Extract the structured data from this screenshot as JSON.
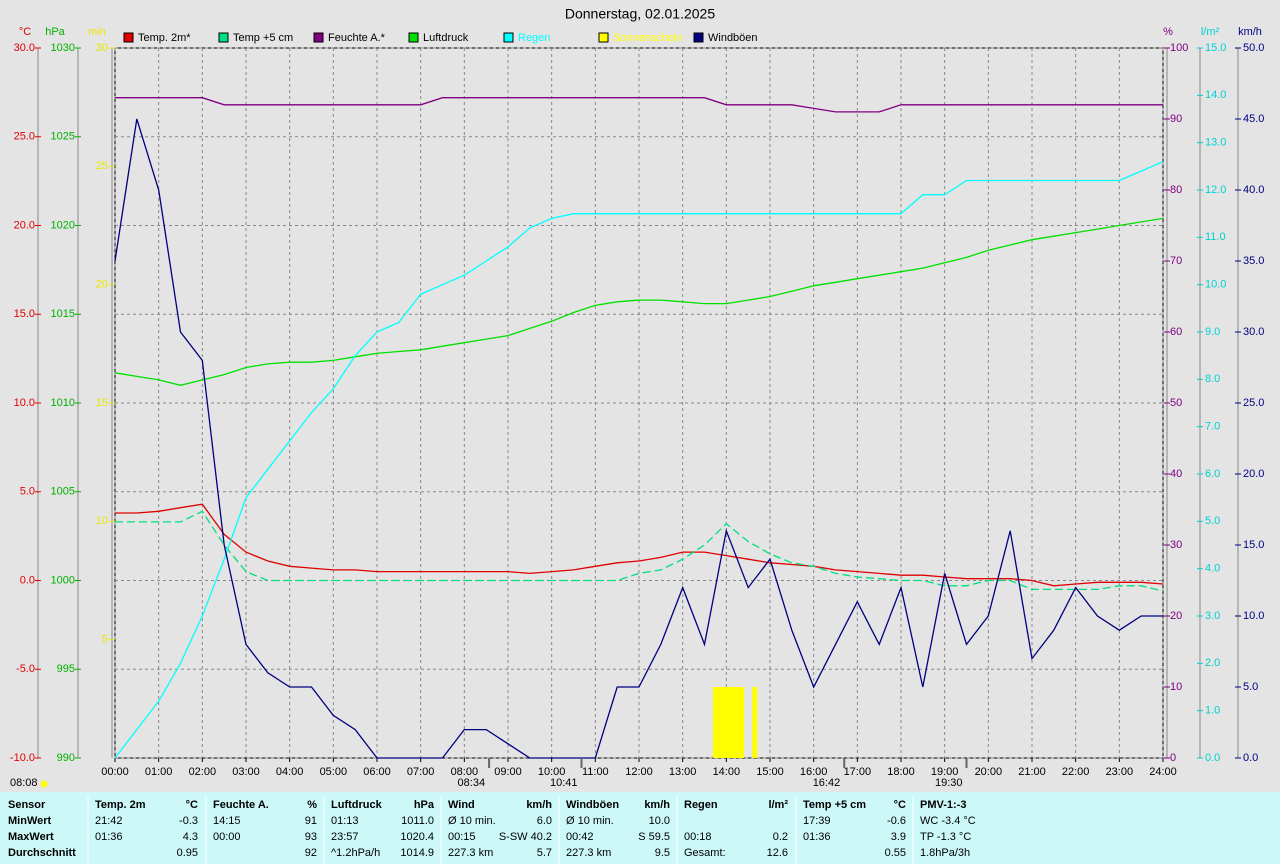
{
  "chart_data": {
    "type": "line",
    "title": "Donnerstag, 02.01.2025",
    "xlim": [
      0,
      24
    ],
    "xticks": [
      {
        "value": 0,
        "label": "00:00"
      },
      {
        "value": 1,
        "label": "01:00"
      },
      {
        "value": 2,
        "label": "02:00"
      },
      {
        "value": 3,
        "label": "03:00"
      },
      {
        "value": 4,
        "label": "04:00"
      },
      {
        "value": 5,
        "label": "05:00"
      },
      {
        "value": 6,
        "label": "06:00"
      },
      {
        "value": 7,
        "label": "07:00"
      },
      {
        "value": 8,
        "label": "08:00"
      },
      {
        "value": 9,
        "label": "09:00"
      },
      {
        "value": 10,
        "label": "10:00"
      },
      {
        "value": 11,
        "label": "11:00"
      },
      {
        "value": 12,
        "label": "12:00"
      },
      {
        "value": 13,
        "label": "13:00"
      },
      {
        "value": 14,
        "label": "14:00"
      },
      {
        "value": 15,
        "label": "15:00"
      },
      {
        "value": 16,
        "label": "16:00"
      },
      {
        "value": 17,
        "label": "17:00"
      },
      {
        "value": 18,
        "label": "18:00"
      },
      {
        "value": 19,
        "label": "19:00"
      },
      {
        "value": 20,
        "label": "20:00"
      },
      {
        "value": 21,
        "label": "21:00"
      },
      {
        "value": 22,
        "label": "22:00"
      },
      {
        "value": 23,
        "label": "23:00"
      },
      {
        "value": 24,
        "label": "24:00"
      }
    ],
    "grid": true,
    "axes": [
      {
        "unit": "°C",
        "color": "#e00000",
        "lim": [
          -10,
          30
        ],
        "ticks": [
          {
            "value": -10,
            "label": "-10.0"
          },
          {
            "value": -5,
            "label": "-5.0"
          },
          {
            "value": 0,
            "label": "0.0"
          },
          {
            "value": 5,
            "label": "5.0"
          },
          {
            "value": 10,
            "label": "10.0"
          },
          {
            "value": 15,
            "label": "15.0"
          },
          {
            "value": 20,
            "label": "20.0"
          },
          {
            "value": 25,
            "label": "25.0"
          },
          {
            "value": 30,
            "label": "30.0"
          }
        ]
      },
      {
        "unit": "hPa",
        "color": "#00b000",
        "lim": [
          990,
          1030
        ],
        "ticks": [
          990,
          995,
          1000,
          1005,
          1010,
          1015,
          1020,
          1025,
          1030
        ]
      },
      {
        "unit": "min",
        "color": "#e8e800",
        "lim": [
          0,
          30
        ],
        "ticks": [
          5,
          10,
          15,
          20,
          25,
          30
        ]
      },
      {
        "unit": "%",
        "color": "#800080",
        "lim": [
          0,
          100
        ],
        "ticks": [
          0,
          10,
          20,
          30,
          40,
          50,
          60,
          70,
          80,
          90,
          100
        ]
      },
      {
        "unit": "l/m²",
        "color": "#00d0d0",
        "lim": [
          0,
          15
        ],
        "ticks": [
          {
            "value": 0,
            "label": "0.0"
          },
          {
            "value": 1,
            "label": "1.0"
          },
          {
            "value": 2,
            "label": "2.0"
          },
          {
            "value": 3,
            "label": "3.0"
          },
          {
            "value": 4,
            "label": "4.0"
          },
          {
            "value": 5,
            "label": "5.0"
          },
          {
            "value": 6,
            "label": "6.0"
          },
          {
            "value": 7,
            "label": "7.0"
          },
          {
            "value": 8,
            "label": "8.0"
          },
          {
            "value": 9,
            "label": "9.0"
          },
          {
            "value": 10,
            "label": "10.0"
          },
          {
            "value": 11,
            "label": "11.0"
          },
          {
            "value": 12,
            "label": "12.0"
          },
          {
            "value": 13,
            "label": "13.0"
          },
          {
            "value": 14,
            "label": "14.0"
          },
          {
            "value": 15,
            "label": "15.0"
          }
        ]
      },
      {
        "unit": "km/h",
        "color": "#000080",
        "lim": [
          0,
          50
        ],
        "ticks": [
          {
            "value": 0,
            "label": "0.0"
          },
          {
            "value": 5,
            "label": "5.0"
          },
          {
            "value": 10,
            "label": "10.0"
          },
          {
            "value": 15,
            "label": "15.0"
          },
          {
            "value": 20,
            "label": "20.0"
          },
          {
            "value": 25,
            "label": "25.0"
          },
          {
            "value": 30,
            "label": "30.0"
          },
          {
            "value": 35,
            "label": "35.0"
          },
          {
            "value": 40,
            "label": "40.0"
          },
          {
            "value": 45,
            "label": "45.0"
          },
          {
            "value": 50,
            "label": "50.0"
          }
        ]
      }
    ],
    "x": [
      0,
      0.5,
      1,
      1.5,
      2,
      2.5,
      3,
      3.5,
      4,
      4.5,
      5,
      5.5,
      6,
      6.5,
      7,
      7.5,
      8,
      8.5,
      9,
      9.5,
      10,
      10.5,
      11,
      11.5,
      12,
      12.5,
      13,
      13.5,
      14,
      14.5,
      15,
      15.5,
      16,
      16.5,
      17,
      17.5,
      18,
      18.5,
      19,
      19.5,
      20,
      20.5,
      21,
      21.5,
      22,
      22.5,
      23,
      23.5,
      24
    ],
    "series": [
      {
        "name": "Temp. 2m*",
        "color": "#e00000",
        "axis": 0,
        "values": [
          3.8,
          3.8,
          3.9,
          4.1,
          4.3,
          2.6,
          1.6,
          1.1,
          0.8,
          0.7,
          0.6,
          0.6,
          0.5,
          0.5,
          0.5,
          0.5,
          0.5,
          0.5,
          0.5,
          0.4,
          0.5,
          0.6,
          0.8,
          1.0,
          1.1,
          1.3,
          1.6,
          1.6,
          1.4,
          1.2,
          1.0,
          0.9,
          0.8,
          0.6,
          0.5,
          0.4,
          0.3,
          0.3,
          0.2,
          0.1,
          0.1,
          0.1,
          0.0,
          -0.3,
          -0.2,
          -0.1,
          -0.1,
          -0.1,
          -0.2
        ]
      },
      {
        "name": "Temp +5 cm",
        "color": "#00e080",
        "axis": 0,
        "dash": true,
        "values": [
          3.3,
          3.3,
          3.3,
          3.3,
          3.9,
          2.0,
          0.5,
          0.0,
          0.0,
          0.0,
          0.0,
          0.0,
          0.0,
          0.0,
          0.0,
          0.0,
          0.0,
          0.0,
          0.0,
          0.0,
          0.0,
          0.0,
          0.0,
          0.0,
          0.4,
          0.6,
          1.2,
          2.0,
          3.2,
          2.2,
          1.5,
          1.0,
          0.8,
          0.4,
          0.2,
          0.1,
          0.0,
          0.0,
          -0.3,
          -0.3,
          0.0,
          0.0,
          -0.5,
          -0.5,
          -0.5,
          -0.5,
          -0.3,
          -0.3,
          -0.6
        ]
      },
      {
        "name": "Feuchte A.*",
        "color": "#800080",
        "axis": 3,
        "values": [
          93,
          93,
          93,
          93,
          93,
          92,
          92,
          92,
          92,
          92,
          92,
          92,
          92,
          92,
          92,
          93,
          93,
          93,
          93,
          93,
          93,
          93,
          93,
          93,
          93,
          93,
          93,
          93,
          92,
          92,
          92,
          92,
          91.5,
          91,
          91,
          91,
          92,
          92,
          92,
          92,
          92,
          92,
          92,
          92,
          92,
          92,
          92,
          92,
          92
        ]
      },
      {
        "name": "Luftdruck",
        "color": "#00e000",
        "axis": 1,
        "values": [
          1011.7,
          1011.5,
          1011.3,
          1011.0,
          1011.3,
          1011.6,
          1012.0,
          1012.2,
          1012.3,
          1012.3,
          1012.4,
          1012.6,
          1012.8,
          1012.9,
          1013.0,
          1013.2,
          1013.4,
          1013.6,
          1013.8,
          1014.2,
          1014.6,
          1015.1,
          1015.5,
          1015.7,
          1015.8,
          1015.8,
          1015.7,
          1015.6,
          1015.6,
          1015.8,
          1016.0,
          1016.3,
          1016.6,
          1016.8,
          1017.0,
          1017.2,
          1017.4,
          1017.6,
          1017.9,
          1018.2,
          1018.6,
          1018.9,
          1019.2,
          1019.4,
          1019.6,
          1019.8,
          1020.0,
          1020.2,
          1020.4
        ]
      },
      {
        "name": "Regen",
        "color": "#00ffff",
        "axis": 4,
        "values": [
          0,
          0.6,
          1.2,
          2.0,
          3.0,
          4.2,
          5.5,
          6.1,
          6.7,
          7.3,
          7.8,
          8.5,
          9.0,
          9.2,
          9.8,
          10.0,
          10.2,
          10.5,
          10.8,
          11.2,
          11.4,
          11.5,
          11.5,
          11.5,
          11.5,
          11.5,
          11.5,
          11.5,
          11.5,
          11.5,
          11.5,
          11.5,
          11.5,
          11.5,
          11.5,
          11.5,
          11.5,
          11.9,
          11.9,
          12.2,
          12.2,
          12.2,
          12.2,
          12.2,
          12.2,
          12.2,
          12.2,
          12.4,
          12.6
        ]
      },
      {
        "name": "Sonnenschein",
        "color": "#ffff00",
        "axis": 2,
        "bars": true,
        "x": [
          13.75,
          13.85,
          13.95,
          14.05,
          14.15,
          14.25,
          14.35,
          14.65
        ],
        "values": [
          3,
          3,
          3,
          3,
          3,
          3,
          3,
          3
        ]
      },
      {
        "name": "Windböen",
        "color": "#000080",
        "axis": 5,
        "values": [
          35,
          45,
          40,
          30,
          28,
          15,
          8,
          6,
          5,
          5,
          3,
          2,
          0,
          0,
          0,
          0,
          2,
          2,
          1,
          0,
          0,
          0,
          0,
          5,
          5,
          8,
          12,
          8,
          16,
          12,
          14,
          9,
          5,
          8,
          11,
          8,
          12,
          5,
          13,
          8,
          10,
          16,
          7,
          9,
          12,
          10,
          9,
          10,
          10
        ]
      }
    ],
    "sunrise": "08:08",
    "markers": [
      {
        "label": "08:34",
        "x": 8.567
      },
      {
        "label": "10:41",
        "x": 10.683
      },
      {
        "label": "16:42",
        "x": 16.7
      },
      {
        "label": "19:30",
        "x": 19.5
      }
    ],
    "table": {
      "rows": [
        {
          "label": "Sensor",
          "cells": [
            {
              "left": "Temp. 2m",
              "right": "°C"
            },
            {
              "left": "Feuchte A.",
              "right": "%"
            },
            {
              "left": "Luftdruck",
              "right": "hPa"
            },
            {
              "left": "Wind",
              "right": "km/h"
            },
            {
              "left": "Windböen",
              "right": "km/h"
            },
            {
              "left": "Regen",
              "right": "l/m²"
            },
            {
              "left": "Temp +5 cm",
              "right": "°C"
            },
            {
              "left": "PMV-1:-3"
            }
          ]
        },
        {
          "label": "MinWert",
          "cells": [
            {
              "left": "21:42",
              "right": "-0.3"
            },
            {
              "left": "14:15",
              "right": "91"
            },
            {
              "left": "01:13",
              "right": "1011.0"
            },
            {
              "left": "Ø 10 min.",
              "right": "6.0"
            },
            {
              "left": "Ø 10 min.",
              "right": "10.0"
            },
            {},
            {
              "left": "17:39",
              "right": "-0.6"
            },
            {
              "left": "WC -3.4 °C"
            }
          ]
        },
        {
          "label": "MaxWert",
          "cells": [
            {
              "left": "01:36",
              "right": "4.3"
            },
            {
              "left": "00:00",
              "right": "93"
            },
            {
              "left": "23:57",
              "right": "1020.4"
            },
            {
              "left": "00:15",
              "right": "S-SW 40.2"
            },
            {
              "left": "00:42",
              "right": "S 59.5"
            },
            {
              "left": "00:18",
              "right": "0.2"
            },
            {
              "left": "01:36",
              "right": "3.9"
            },
            {
              "left": "TP -1.3 °C"
            }
          ]
        },
        {
          "label": "Durchschnitt",
          "cells": [
            {
              "right": "0.95"
            },
            {
              "right": "92"
            },
            {
              "left": "^1.2hPa/h",
              "right": "1014.9"
            },
            {
              "left": "227.3 km",
              "right": "5.7"
            },
            {
              "left": "227.3 km",
              "right": "9.5"
            },
            {
              "left": "Gesamt:",
              "right": "12.6"
            },
            {
              "right": "0.55"
            },
            {
              "left": "1.8hPa/3h"
            }
          ]
        }
      ]
    }
  }
}
